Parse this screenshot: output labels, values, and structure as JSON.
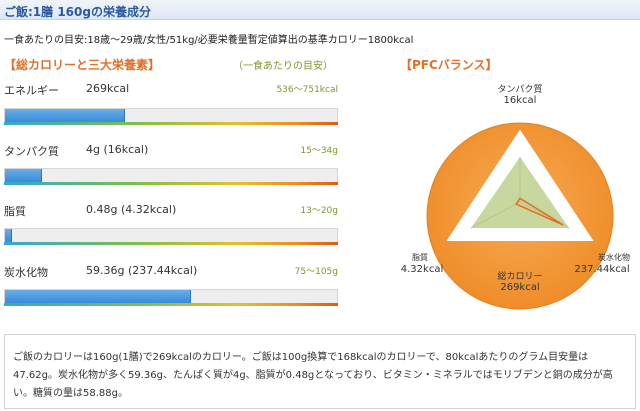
{
  "header": {
    "title": "ご飯:1膳 160gの栄養成分"
  },
  "subtitle": "一食あたりの目安:18歳～29歳/女性/51kg/必要栄養量暫定値算出の基準カロリー1800kcal",
  "nutrition": {
    "title": "【総カロリーと三大栄養素】",
    "note": "（一食あたりの目安）",
    "items": [
      {
        "label": "エネルギー",
        "value": "269kcal",
        "range": "536～751kcal",
        "fill": 0.36
      },
      {
        "label": "タンパク質",
        "value": "4g (16kcal)",
        "range": "15～34g",
        "fill": 0.11
      },
      {
        "label": "脂質",
        "value": "0.48g (4.32kcal)",
        "range": "13～20g",
        "fill": 0.02
      },
      {
        "label": "炭水化物",
        "value": "59.36g (237.44kcal)",
        "range": "75～105g",
        "fill": 0.56
      }
    ]
  },
  "pfc": {
    "title": "【PFCバランス】",
    "protein_label": "タンパク質",
    "protein_value": "16kcal",
    "fat_label": "脂質",
    "fat_value": "4.32kcal",
    "carb_label": "炭水化物",
    "carb_value": "237.44kcal",
    "total_label": "総カロリー",
    "total_value": "269kcal",
    "levels": {
      "protein": 0.06,
      "fat": 0.02,
      "carb": 0.88
    },
    "colors": {
      "circle": "#f0922e",
      "triangle": "#c8d8a0",
      "accent": "#e86a1a"
    }
  },
  "comment": "ご飯のカロリーは160g(1膳)で269kcalのカロリー。ご飯は100g換算で168kcalのカロリーで、80kcalあたりのグラム目安量は47.62g。炭水化物が多く59.36g、たんぱく質が4g、脂質が0.48gとなっており、ビタミン・ミネラルではモリブデンと銅の成分が高い。糖質の量は58.88g。"
}
